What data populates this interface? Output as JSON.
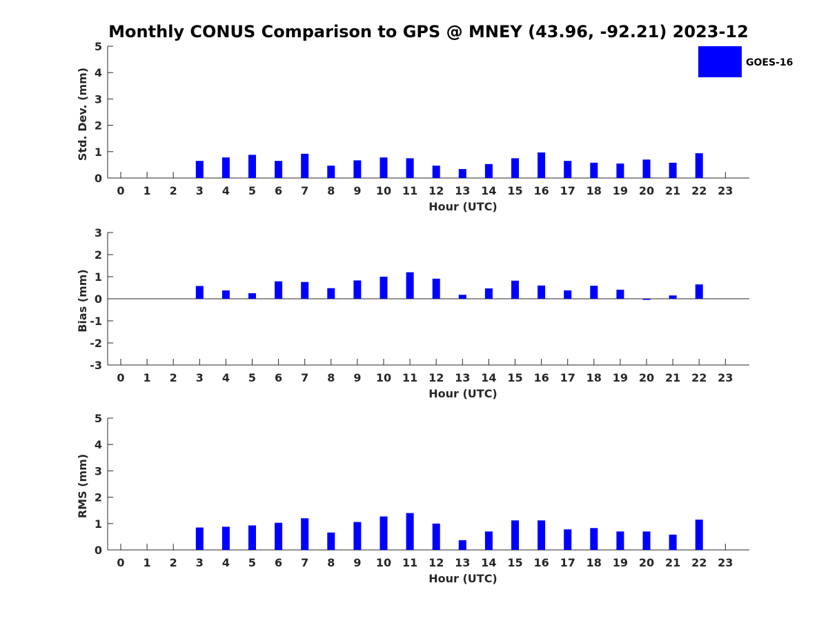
{
  "title": "Monthly CONUS Comparison to GPS @ MNEY (43.96, -92.21) 2023-12",
  "legend": {
    "label": "GOES-16",
    "color": "#0000ff"
  },
  "chart_data": [
    {
      "type": "bar",
      "ylabel": "Std. Dev. (mm)",
      "xlabel": "Hour (UTC)",
      "ylim": [
        0,
        5
      ],
      "yticks": [
        0,
        1,
        2,
        3,
        4,
        5
      ],
      "categories": [
        "0",
        "1",
        "2",
        "3",
        "4",
        "5",
        "6",
        "7",
        "8",
        "9",
        "10",
        "11",
        "12",
        "13",
        "14",
        "15",
        "16",
        "17",
        "18",
        "19",
        "20",
        "21",
        "22",
        "23"
      ],
      "series": [
        {
          "name": "GOES-16",
          "color": "#0000ff",
          "values": [
            null,
            null,
            null,
            0.65,
            0.78,
            0.88,
            0.65,
            0.92,
            0.47,
            0.67,
            0.78,
            0.75,
            0.47,
            0.34,
            0.53,
            0.75,
            0.97,
            0.65,
            0.58,
            0.55,
            0.7,
            0.58,
            0.94,
            null
          ]
        }
      ]
    },
    {
      "type": "bar",
      "ylabel": "Bias (mm)",
      "xlabel": "Hour (UTC)",
      "ylim": [
        -3,
        3
      ],
      "yticks": [
        -3,
        -2,
        -1,
        0,
        1,
        2,
        3
      ],
      "categories": [
        "0",
        "1",
        "2",
        "3",
        "4",
        "5",
        "6",
        "7",
        "8",
        "9",
        "10",
        "11",
        "12",
        "13",
        "14",
        "15",
        "16",
        "17",
        "18",
        "19",
        "20",
        "21",
        "22",
        "23"
      ],
      "series": [
        {
          "name": "GOES-16",
          "color": "#0000ff",
          "values": [
            null,
            null,
            null,
            0.58,
            0.38,
            0.25,
            0.79,
            0.76,
            0.48,
            0.83,
            1.0,
            1.2,
            0.91,
            0.18,
            0.47,
            0.82,
            0.6,
            0.38,
            0.59,
            0.41,
            -0.05,
            0.15,
            0.65,
            null
          ]
        }
      ]
    },
    {
      "type": "bar",
      "ylabel": "RMS (mm)",
      "xlabel": "Hour (UTC)",
      "ylim": [
        0,
        5
      ],
      "yticks": [
        0,
        1,
        2,
        3,
        4,
        5
      ],
      "categories": [
        "0",
        "1",
        "2",
        "3",
        "4",
        "5",
        "6",
        "7",
        "8",
        "9",
        "10",
        "11",
        "12",
        "13",
        "14",
        "15",
        "16",
        "17",
        "18",
        "19",
        "20",
        "21",
        "22",
        "23"
      ],
      "series": [
        {
          "name": "GOES-16",
          "color": "#0000ff",
          "values": [
            null,
            null,
            null,
            0.85,
            0.88,
            0.93,
            1.03,
            1.2,
            0.66,
            1.06,
            1.27,
            1.4,
            1.0,
            0.37,
            0.7,
            1.12,
            1.12,
            0.78,
            0.83,
            0.7,
            0.7,
            0.58,
            1.15,
            null
          ]
        }
      ]
    }
  ]
}
